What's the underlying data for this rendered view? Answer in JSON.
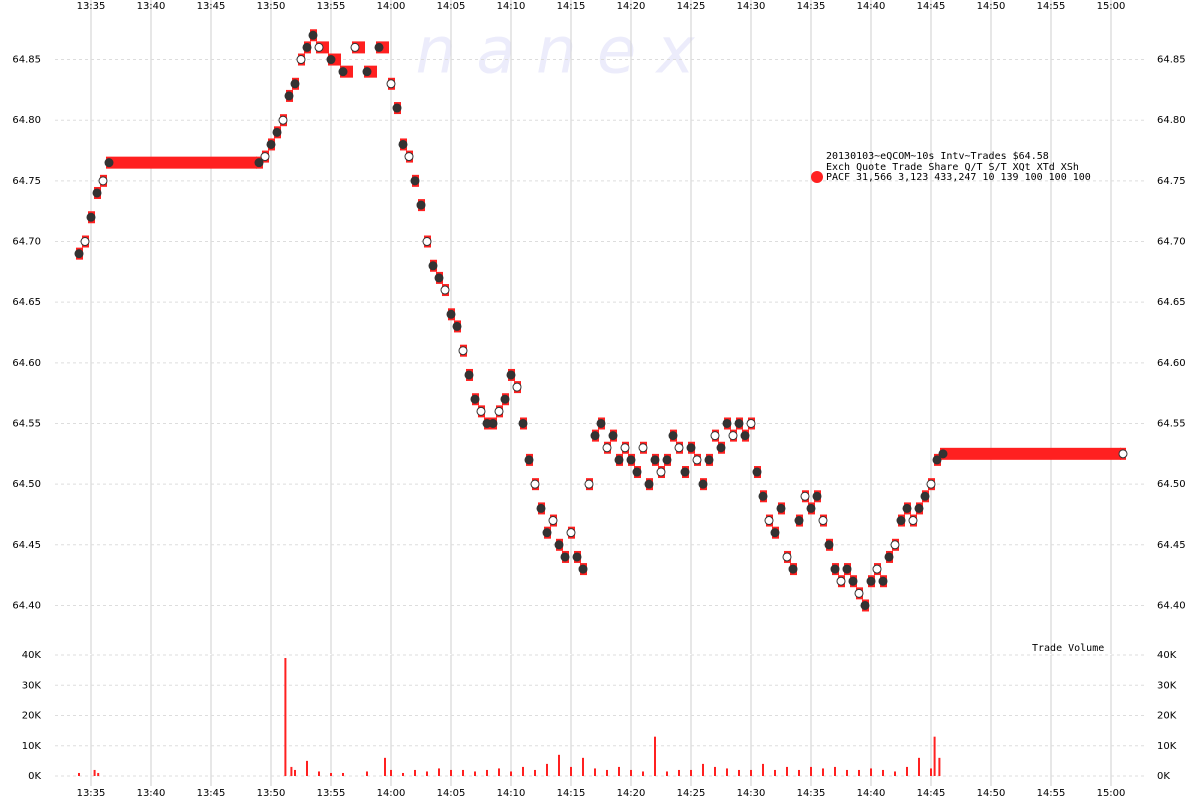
{
  "chart_data": [
    {
      "type": "quote-trade",
      "watermark": "n   a   n   e   x",
      "legend_title": "20130103~eQCOM~10s Intv~Trades $64.58",
      "legend_header": "Exch  Quote Trade   Share  Q/T   S/T  XQt XTd XSh",
      "legend_stats": "31,566 3,123 433,247    10   139 100 100 100",
      "xlim": [
        812,
        903
      ],
      "xticks": [
        {
          "value": 815,
          "label": "13:35"
        },
        {
          "value": 820,
          "label": "13:40"
        },
        {
          "value": 825,
          "label": "13:45"
        },
        {
          "value": 830,
          "label": "13:50"
        },
        {
          "value": 835,
          "label": "13:55"
        },
        {
          "value": 840,
          "label": "14:00"
        },
        {
          "value": 845,
          "label": "14:05"
        },
        {
          "value": 850,
          "label": "14:10"
        },
        {
          "value": 855,
          "label": "14:15"
        },
        {
          "value": 860,
          "label": "14:20"
        },
        {
          "value": 865,
          "label": "14:25"
        },
        {
          "value": 870,
          "label": "14:30"
        },
        {
          "value": 875,
          "label": "14:35"
        },
        {
          "value": 880,
          "label": "14:40"
        },
        {
          "value": 885,
          "label": "14:45"
        },
        {
          "value": 890,
          "label": "14:50"
        },
        {
          "value": 895,
          "label": "14:55"
        },
        {
          "value": 900,
          "label": "15:00"
        }
      ],
      "ylim": [
        64.36,
        64.89
      ],
      "yticks": [
        {
          "value": 64.4,
          "label": "64.40"
        },
        64.45,
        {
          "value": 64.5,
          "label": "64.50"
        },
        64.55,
        {
          "value": 64.6,
          "label": "64.60"
        },
        64.65,
        {
          "value": 64.7,
          "label": "64.70"
        },
        64.75,
        {
          "value": 64.8,
          "label": "64.80"
        },
        64.85
      ],
      "grid": true,
      "series": [
        {
          "name": "PACF",
          "color": "#ff2020",
          "x": [
            814,
            814.5,
            815,
            815.5,
            816,
            816.5,
            829,
            829.5,
            830,
            830.5,
            831,
            831.5,
            832,
            832.5,
            833,
            833.5,
            834,
            835,
            836,
            837,
            838,
            839,
            840,
            840.5,
            841,
            841.5,
            842,
            842.5,
            843,
            843.5,
            844,
            844.5,
            845,
            845.5,
            846,
            846.5,
            847,
            847.5,
            848,
            848.5,
            849,
            849.5,
            850,
            850.5,
            851,
            851.5,
            852,
            852.5,
            853,
            853.5,
            854,
            854.5,
            855,
            855.5,
            856,
            856.5,
            857,
            857.5,
            858,
            858.5,
            859,
            859.5,
            860,
            860.5,
            861,
            861.5,
            862,
            862.5,
            863,
            863.5,
            864,
            864.5,
            865,
            865.5,
            866,
            866.5,
            867,
            867.5,
            868,
            868.5,
            869,
            869.5,
            870,
            870.5,
            871,
            871.5,
            872,
            872.5,
            873,
            873.5,
            874,
            874.5,
            875,
            875.5,
            876,
            876.5,
            877,
            877.5,
            878,
            878.5,
            879,
            879.5,
            880,
            880.5,
            881,
            881.5,
            882,
            882.5,
            883,
            883.5,
            884,
            884.5,
            885,
            885.5,
            886,
            901
          ],
          "values": [
            64.69,
            64.7,
            64.72,
            64.74,
            64.75,
            64.765,
            64.765,
            64.77,
            64.78,
            64.79,
            64.8,
            64.82,
            64.83,
            64.85,
            64.86,
            64.87,
            64.86,
            64.85,
            64.84,
            64.86,
            64.84,
            64.86,
            64.83,
            64.81,
            64.78,
            64.77,
            64.75,
            64.73,
            64.7,
            64.68,
            64.67,
            64.66,
            64.64,
            64.63,
            64.61,
            64.59,
            64.57,
            64.56,
            64.55,
            64.55,
            64.56,
            64.57,
            64.59,
            64.58,
            64.55,
            64.52,
            64.5,
            64.48,
            64.46,
            64.47,
            64.45,
            64.44,
            64.46,
            64.44,
            64.43,
            64.5,
            64.54,
            64.55,
            64.53,
            64.54,
            64.52,
            64.53,
            64.52,
            64.51,
            64.53,
            64.5,
            64.52,
            64.51,
            64.52,
            64.54,
            64.53,
            64.51,
            64.53,
            64.52,
            64.5,
            64.52,
            64.54,
            64.53,
            64.55,
            64.54,
            64.55,
            64.54,
            64.55,
            64.51,
            64.49,
            64.47,
            64.46,
            64.48,
            64.44,
            64.43,
            64.47,
            64.49,
            64.48,
            64.49,
            64.47,
            64.45,
            64.43,
            64.42,
            64.43,
            64.42,
            64.41,
            64.4,
            64.42,
            64.43,
            64.42,
            64.44,
            64.45,
            64.47,
            64.48,
            64.47,
            64.48,
            64.49,
            64.5,
            64.52,
            64.525,
            64.525
          ]
        }
      ]
    },
    {
      "type": "bar",
      "label": "Trade Volume",
      "color": "#ff2020",
      "xlim": [
        812,
        903
      ],
      "xticks": [
        {
          "value": 815,
          "label": "13:35"
        },
        {
          "value": 820,
          "label": "13:40"
        },
        {
          "value": 825,
          "label": "13:45"
        },
        {
          "value": 830,
          "label": "13:50"
        },
        {
          "value": 835,
          "label": "13:55"
        },
        {
          "value": 840,
          "label": "14:00"
        },
        {
          "value": 845,
          "label": "14:05"
        },
        {
          "value": 850,
          "label": "14:10"
        },
        {
          "value": 855,
          "label": "14:15"
        },
        {
          "value": 860,
          "label": "14:20"
        },
        {
          "value": 865,
          "label": "14:25"
        },
        {
          "value": 870,
          "label": "14:30"
        },
        {
          "value": 875,
          "label": "14:35"
        },
        {
          "value": 880,
          "label": "14:40"
        },
        {
          "value": 885,
          "label": "14:45"
        },
        {
          "value": 890,
          "label": "14:50"
        },
        {
          "value": 895,
          "label": "14:55"
        },
        {
          "value": 900,
          "label": "15:00"
        }
      ],
      "ylim": [
        0,
        40000
      ],
      "yticks": [
        {
          "value": 0,
          "label": "0K"
        },
        {
          "value": 10000,
          "label": "10K"
        },
        {
          "value": 20000,
          "label": "20K"
        },
        {
          "value": 30000,
          "label": "30K"
        },
        {
          "value": 40000,
          "label": "40K"
        }
      ],
      "grid": true,
      "x": [
        814,
        815.3,
        815.6,
        831.2,
        831.7,
        832,
        833,
        834,
        835,
        836,
        838,
        839.5,
        840,
        841,
        842,
        843,
        844,
        845,
        846,
        847,
        848,
        849,
        850,
        851,
        852,
        853,
        854,
        855,
        856,
        857,
        858,
        859,
        860,
        861,
        862,
        863,
        864,
        865,
        866,
        867,
        868,
        869,
        870,
        871,
        872,
        873,
        874,
        875,
        876,
        877,
        878,
        879,
        880,
        881,
        882,
        883,
        884,
        885,
        885.3,
        885.7
      ],
      "values": [
        1000,
        2000,
        1000,
        39000,
        3000,
        2000,
        5000,
        1500,
        1000,
        1000,
        1500,
        6000,
        2000,
        1000,
        2000,
        1500,
        2500,
        2000,
        2000,
        1500,
        2000,
        2500,
        1500,
        3000,
        2000,
        4000,
        7000,
        3000,
        6000,
        2500,
        2000,
        3000,
        2000,
        1500,
        13000,
        1500,
        2000,
        2000,
        4000,
        3000,
        2500,
        2000,
        2000,
        4000,
        2000,
        3000,
        2000,
        3000,
        2500,
        3000,
        2000,
        2000,
        2500,
        2000,
        1500,
        3000,
        6000,
        2500,
        13000,
        6000
      ]
    }
  ]
}
